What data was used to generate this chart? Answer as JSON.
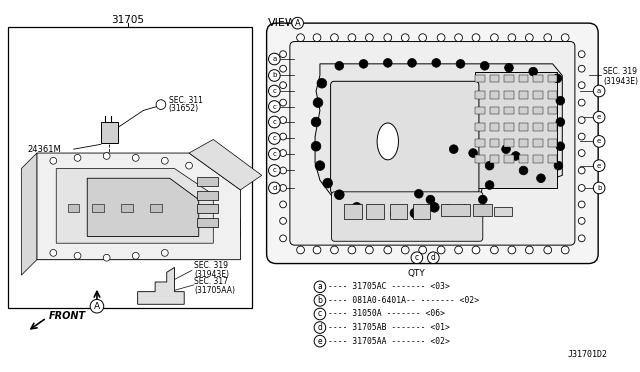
{
  "bg_color": "#ffffff",
  "title_label": "31705",
  "view_label": "VIEW",
  "diagram_id": "J31701D2",
  "left_label": "31705",
  "part_24361m": "24361M",
  "sec311": "SEC. 311",
  "sec311b": "(31652)",
  "sec319a": "SEC. 319",
  "sec319b": "(31943E)",
  "sec317a": "SEC. 317",
  "sec317b": "(31705AA)",
  "sec319_right_a": "SEC. 319",
  "sec319_right_b": "(31943E)",
  "front_label": "FRONT",
  "qty_title": "QTY",
  "qty_items": [
    {
      "letter": "a",
      "part": "31705AC",
      "dashes1": "----",
      "dashes2": "-------",
      "qty": "<03>"
    },
    {
      "letter": "b",
      "part": "081A0-6401A--",
      "dashes1": "----",
      "dashes2": "",
      "qty": "<02>"
    },
    {
      "letter": "c",
      "part": "31050A",
      "dashes1": "----",
      "dashes2": "---------",
      "qty": "<06>"
    },
    {
      "letter": "d",
      "part": "31705AB",
      "dashes1": "----",
      "dashes2": "-------",
      "qty": "<01>"
    },
    {
      "letter": "e",
      "part": "31705AA",
      "dashes1": "----",
      "dashes2": "------",
      "qty": "<02>"
    }
  ]
}
